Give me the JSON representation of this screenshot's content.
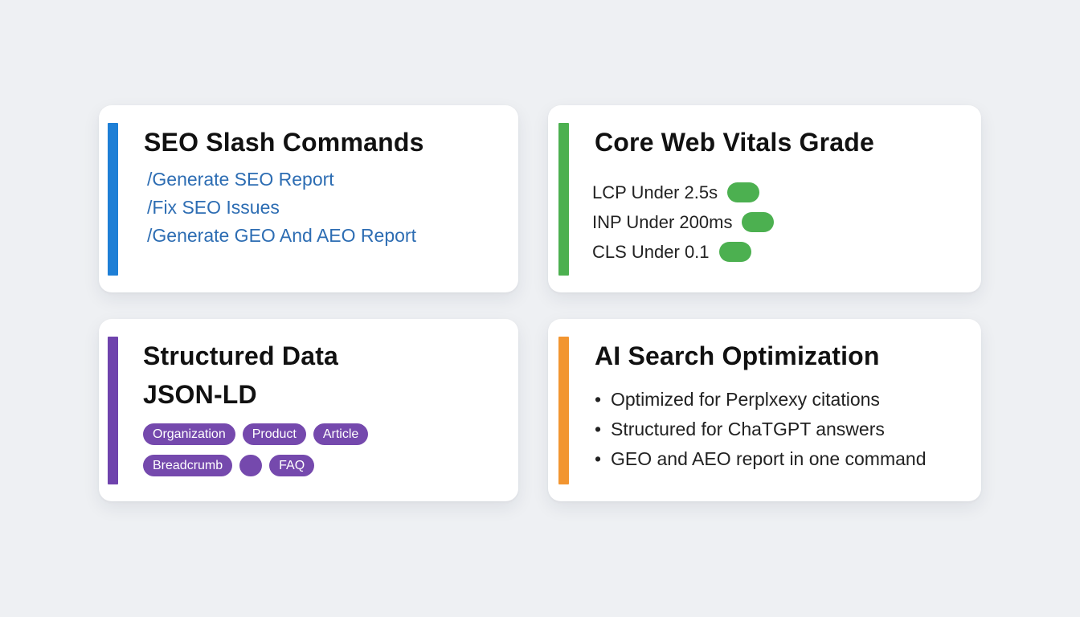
{
  "colors": {
    "blue_accent": "#1e7fd6",
    "green_accent": "#4cb050",
    "purple_accent": "#6f43ad",
    "orange_accent": "#f29530",
    "link_text": "#2d6db3",
    "tag_purple": "#7549ad"
  },
  "seo_card": {
    "title": "SEO Slash Commands",
    "commands": [
      "/Generate SEO Report",
      "/Fix SEO Issues",
      "/Generate GEO And AEO Report"
    ]
  },
  "vitals_card": {
    "title": "Core Web Vitals Grade",
    "metrics": [
      {
        "label": "LCP Under 2.5s",
        "status": "good",
        "color": "#4cb050"
      },
      {
        "label": "INP Under 200ms",
        "status": "good",
        "color": "#4cb050"
      },
      {
        "label": "CLS Under 0.1",
        "status": "good",
        "color": "#4cb050"
      }
    ]
  },
  "structured_card": {
    "title_line1": "Structured Data",
    "title_line2": "JSON-LD",
    "tags_row1": [
      "Organization",
      "Product",
      "Article"
    ],
    "tags_row2": [
      "Breadcrumb",
      "",
      "FAQ"
    ]
  },
  "ai_card": {
    "title": "AI Search Optimization",
    "bullet_glyph": "•",
    "bullets": [
      "Optimized for Perplxexy citations",
      "Structured for ChaTGPT answers",
      "GEO and AEO report in one command"
    ]
  }
}
